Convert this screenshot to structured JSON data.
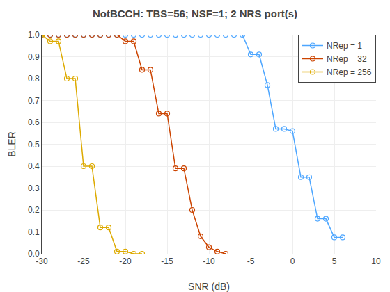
{
  "chart_data": {
    "type": "line",
    "title": "NotBCCH: TBS=56; NSF=1; 2 NRS port(s)",
    "xlabel": "SNR (dB)",
    "ylabel": "BLER",
    "xlim": [
      -30,
      10
    ],
    "ylim": [
      0,
      1
    ],
    "xticks": [
      -30,
      -25,
      -20,
      -15,
      -10,
      -5,
      0,
      5,
      10
    ],
    "yticks": [
      {
        "value": 0,
        "label": "0.0"
      },
      0.1,
      0.2,
      0.3,
      0.4,
      0.5,
      0.6,
      0.7,
      0.8,
      0.9,
      {
        "value": 1,
        "label": "1.0"
      }
    ],
    "grid": true,
    "legend": "upper right",
    "marker": "open circle",
    "series": [
      {
        "name": "NRep = 1",
        "color": "#4da6ff",
        "x": [
          -30,
          -29,
          -28,
          -27,
          -26,
          -25,
          -24,
          -23,
          -22,
          -21,
          -20,
          -19,
          -18,
          -17,
          -16,
          -15,
          -14,
          -13,
          -12,
          -11,
          -10,
          -9,
          -8,
          -7,
          -6,
          -5,
          -4,
          -3,
          -2,
          -1,
          0,
          1,
          2,
          3,
          4,
          5,
          6
        ],
        "values": [
          1.0,
          1.0,
          1.0,
          1.0,
          1.0,
          1.0,
          1.0,
          1.0,
          1.0,
          1.0,
          1.0,
          1.0,
          1.0,
          1.0,
          1.0,
          1.0,
          1.0,
          1.0,
          1.0,
          1.0,
          1.0,
          1.0,
          1.0,
          1.0,
          1.0,
          0.91,
          0.91,
          0.77,
          0.57,
          0.57,
          0.56,
          0.35,
          0.35,
          0.16,
          0.16,
          0.075,
          0.075
        ]
      },
      {
        "name": "NRep = 32",
        "color": "#cc4400",
        "x": [
          -30,
          -29,
          -28,
          -27,
          -26,
          -25,
          -24,
          -23,
          -22,
          -21,
          -20,
          -19,
          -18,
          -17,
          -16,
          -15,
          -14,
          -13,
          -12,
          -11,
          -10,
          -9,
          -8
        ],
        "values": [
          1.0,
          1.0,
          1.0,
          1.0,
          1.0,
          1.0,
          1.0,
          1.0,
          1.0,
          1.0,
          0.97,
          0.97,
          0.84,
          0.84,
          0.64,
          0.64,
          0.39,
          0.39,
          0.2,
          0.08,
          0.03,
          0.01,
          0.0
        ]
      },
      {
        "name": "NRep = 256",
        "color": "#ddaa00",
        "x": [
          -30,
          -29,
          -28,
          -27,
          -26,
          -25,
          -24,
          -23,
          -22,
          -21,
          -20,
          -19,
          -18
        ],
        "values": [
          1.0,
          0.97,
          0.97,
          0.8,
          0.8,
          0.4,
          0.4,
          0.12,
          0.12,
          0.01,
          0.01,
          0.0,
          0.0
        ]
      }
    ]
  }
}
